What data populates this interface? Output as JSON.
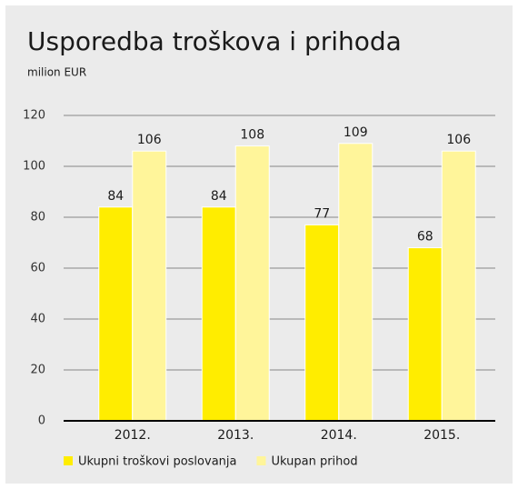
{
  "chart_data": {
    "type": "bar",
    "title": "Usporedba troškova i prihoda",
    "subtitle": "milion EUR",
    "categories": [
      "2012.",
      "2013.",
      "2014.",
      "2015."
    ],
    "series": [
      {
        "name": "Ukupni troškovi poslovanja",
        "color": "#ffed00",
        "values": [
          84,
          84,
          77,
          68
        ]
      },
      {
        "name": "Ukupan prihod",
        "color": "#fff59a",
        "values": [
          106,
          108,
          109,
          106
        ]
      }
    ],
    "ylim": [
      0,
      120
    ],
    "yticks": [
      0,
      20,
      40,
      60,
      80,
      100,
      120
    ],
    "grid": true,
    "legend": "bottom"
  }
}
